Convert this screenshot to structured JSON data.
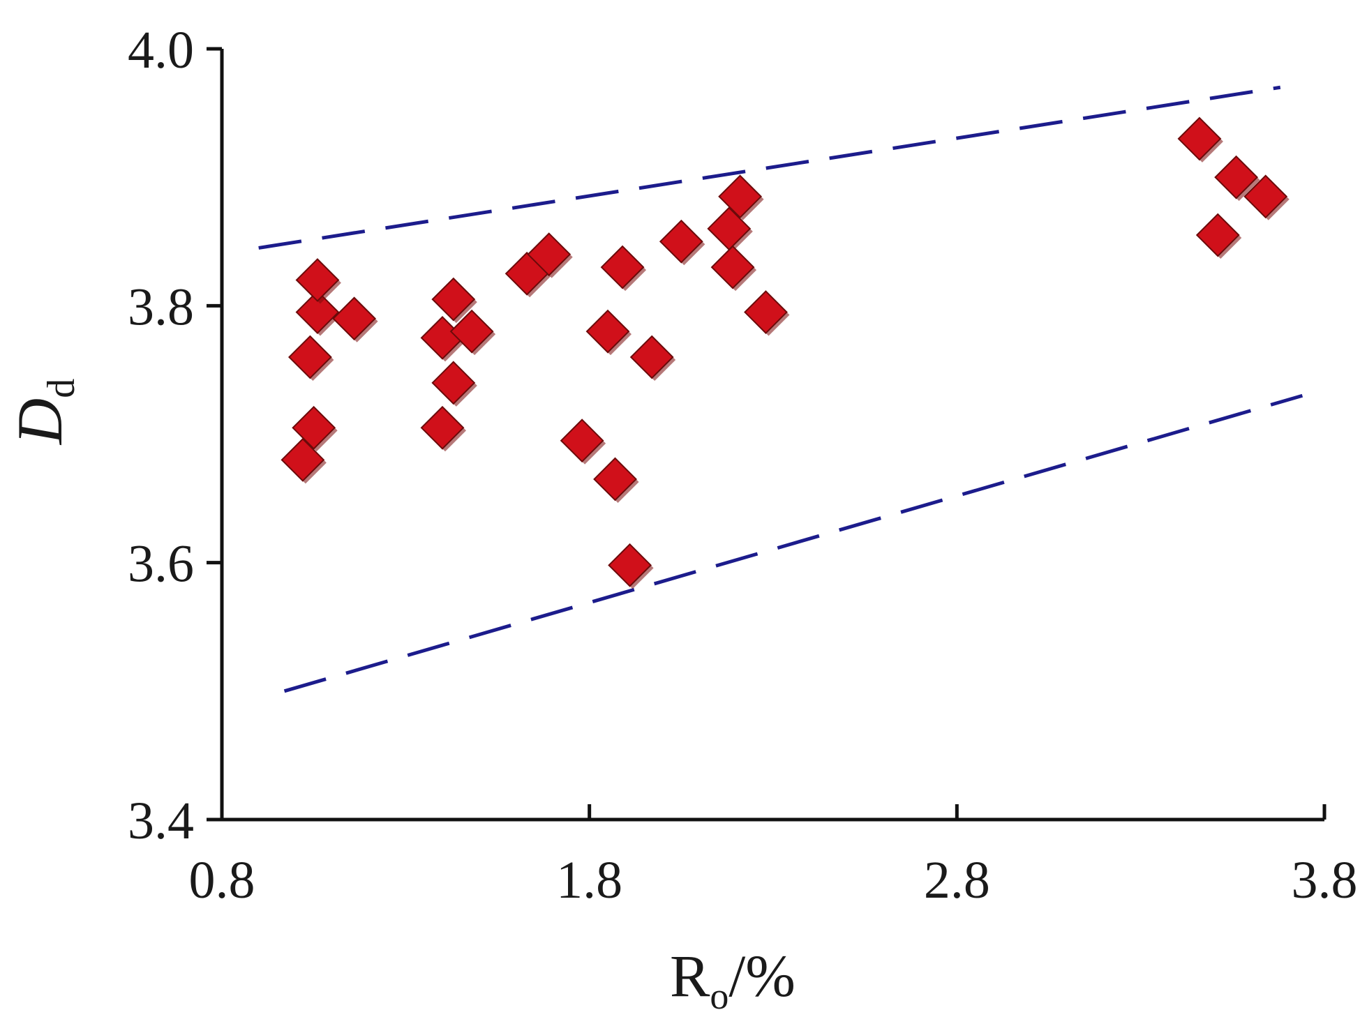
{
  "chart_data": {
    "type": "scatter",
    "title": "",
    "xlabel": {
      "main": "R",
      "sub": "o",
      "suffix": "/%"
    },
    "ylabel": {
      "main": "D",
      "sub": "d"
    },
    "xlim": [
      0.8,
      3.8
    ],
    "ylim": [
      3.4,
      4.0
    ],
    "xticks": [
      0.8,
      1.8,
      2.8,
      3.8
    ],
    "xtick_labels": [
      "0.8",
      "1.8",
      "2.8",
      "3.8"
    ],
    "yticks": [
      3.4,
      3.6,
      3.8,
      4.0
    ],
    "ytick_labels": [
      "3.4",
      "3.6",
      "3.8",
      "4.0"
    ],
    "grid": false,
    "marker": {
      "shape": "diamond",
      "fill": "#d0101a",
      "stroke": "#6b0a0a"
    },
    "points": [
      {
        "x": 1.02,
        "y": 3.68
      },
      {
        "x": 1.05,
        "y": 3.705
      },
      {
        "x": 1.04,
        "y": 3.76
      },
      {
        "x": 1.06,
        "y": 3.795
      },
      {
        "x": 1.06,
        "y": 3.82
      },
      {
        "x": 1.16,
        "y": 3.79
      },
      {
        "x": 1.4,
        "y": 3.705
      },
      {
        "x": 1.43,
        "y": 3.74
      },
      {
        "x": 1.4,
        "y": 3.775
      },
      {
        "x": 1.43,
        "y": 3.805
      },
      {
        "x": 1.48,
        "y": 3.78
      },
      {
        "x": 1.63,
        "y": 3.825
      },
      {
        "x": 1.69,
        "y": 3.84
      },
      {
        "x": 1.78,
        "y": 3.695
      },
      {
        "x": 1.85,
        "y": 3.78
      },
      {
        "x": 1.87,
        "y": 3.665
      },
      {
        "x": 1.89,
        "y": 3.83
      },
      {
        "x": 1.91,
        "y": 3.598
      },
      {
        "x": 1.97,
        "y": 3.76
      },
      {
        "x": 2.05,
        "y": 3.85
      },
      {
        "x": 2.18,
        "y": 3.86
      },
      {
        "x": 2.19,
        "y": 3.83
      },
      {
        "x": 2.21,
        "y": 3.885
      },
      {
        "x": 2.28,
        "y": 3.795
      },
      {
        "x": 3.46,
        "y": 3.93
      },
      {
        "x": 3.51,
        "y": 3.855
      },
      {
        "x": 3.56,
        "y": 3.9
      },
      {
        "x": 3.64,
        "y": 3.885
      }
    ],
    "lines": [
      {
        "style": "dashed",
        "color": "#1c1c8c",
        "x": [
          0.9,
          3.68
        ],
        "y": [
          3.845,
          3.97
        ]
      },
      {
        "style": "dashed",
        "color": "#1c1c8c",
        "x": [
          0.97,
          3.74
        ],
        "y": [
          3.5,
          3.73
        ]
      }
    ]
  }
}
